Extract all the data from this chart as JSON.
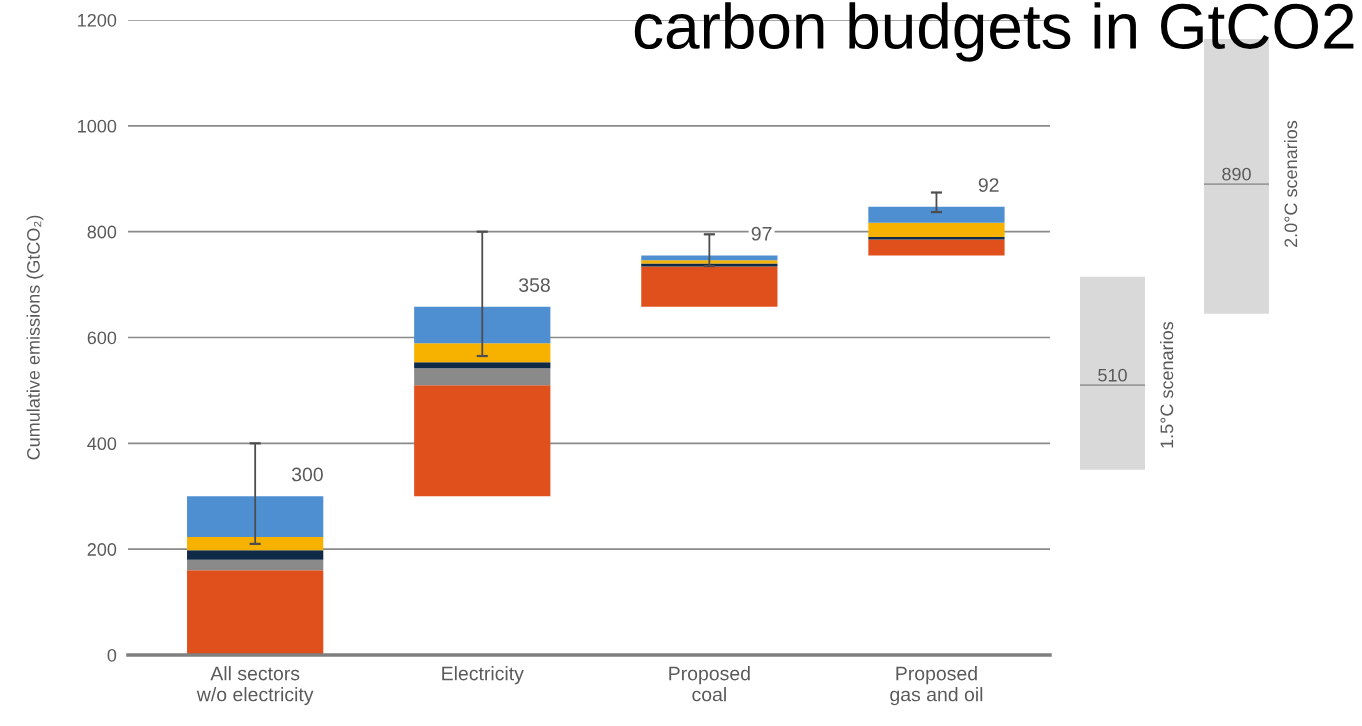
{
  "chart_data": [
    {
      "type": "bar",
      "title": "carbon budgets in GtCO2",
      "ylabel": "Cumulative emissions (GtCO₂)",
      "categories": [
        "All sectors\nw/o electricity",
        "Electricity",
        "Proposed\ncoal",
        "Proposed\ngas and oil"
      ],
      "series": [
        {
          "color": "#e0501c",
          "base": [
            0,
            300,
            658,
            755
          ],
          "values": [
            160,
            210,
            76,
            30
          ]
        },
        {
          "color": "#8a8a8a",
          "base": [
            160,
            510,
            null,
            null
          ],
          "values": [
            20,
            32,
            null,
            null
          ]
        },
        {
          "color": "#0f2a47",
          "base": [
            180,
            542,
            734,
            785
          ],
          "values": [
            18,
            11,
            6,
            5
          ]
        },
        {
          "color": "#f7b200",
          "base": [
            198,
            553,
            740,
            790
          ],
          "values": [
            25,
            36,
            6,
            27
          ]
        },
        {
          "color": "#4d8fd1",
          "base": [
            223,
            589,
            746,
            817
          ],
          "values": [
            77,
            69,
            9,
            30
          ],
          "errors": [
            [
              210,
              400
            ],
            [
              565,
              800
            ],
            [
              735,
              795
            ],
            [
              837,
              874
            ]
          ]
        }
      ],
      "annotations": [
        {
          "text": "300",
          "x": "All sectors\nw/o electricity",
          "y": 300
        },
        {
          "text": "358",
          "x": "Electricity",
          "y": 658
        },
        {
          "text": "97",
          "x": "Proposed\ncoal",
          "y": 755
        },
        {
          "text": "92",
          "x": "Proposed\ngas and oil",
          "y": 847
        }
      ],
      "ylim": [
        0,
        1200
      ],
      "yticks": [
        0,
        200,
        400,
        600,
        800,
        1000,
        1200
      ],
      "grid": "y"
    },
    {
      "type": "bar",
      "categories": [
        "1.5°C scenarios"
      ],
      "base": [
        350
      ],
      "values": [
        365
      ],
      "color": "#d9d9d9",
      "ref_lines": [
        {
          "axis": "y",
          "value": 510,
          "label": "510",
          "color": "#9a9a9a"
        }
      ],
      "ylim": [
        0,
        1200
      ],
      "yticks": [
        0,
        200,
        400,
        600,
        800,
        1000,
        1200
      ],
      "tick_labels": "x"
    },
    {
      "type": "bar",
      "categories": [
        "2.0°C scenarios"
      ],
      "base": [
        645
      ],
      "values": [
        519
      ],
      "color": "#d9d9d9",
      "ref_lines": [
        {
          "axis": "y",
          "value": 890,
          "label": "890",
          "color": "#9a9a9a"
        }
      ],
      "ylim": [
        0,
        1200
      ],
      "yticks": [
        0,
        200,
        400,
        600,
        800,
        1000,
        1200
      ],
      "tick_labels": "x"
    }
  ]
}
